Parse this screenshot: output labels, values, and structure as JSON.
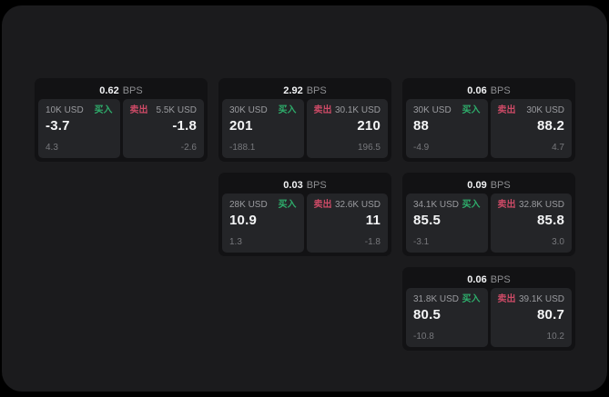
{
  "colors": {
    "page_background": "#1b1b1d",
    "card_background": "#121214",
    "pane_background": "#242528",
    "buy_green": "#2ead6b",
    "sell_red": "#cc4a66",
    "value_white": "#f4f5f6",
    "label_gray": "#9a9b9f"
  },
  "cards": [
    {
      "bps": "0.62",
      "unit": "BPS",
      "buy": {
        "amount": "10K USD",
        "side": "买入",
        "value": "-3.7",
        "sub": "4.3"
      },
      "sell": {
        "side": "卖出",
        "amount": "5.5K USD",
        "value": "-1.8",
        "sub": "-2.6"
      }
    },
    {
      "bps": "2.92",
      "unit": "BPS",
      "buy": {
        "amount": "30K USD",
        "side": "买入",
        "value": "201",
        "sub": "-188.1"
      },
      "sell": {
        "side": "卖出",
        "amount": "30.1K USD",
        "value": "210",
        "sub": "196.5"
      }
    },
    {
      "bps": "0.06",
      "unit": "BPS",
      "buy": {
        "amount": "30K USD",
        "side": "买入",
        "value": "88",
        "sub": "-4.9"
      },
      "sell": {
        "side": "卖出",
        "amount": "30K USD",
        "value": "88.2",
        "sub": "4.7"
      }
    },
    {
      "bps": "0.03",
      "unit": "BPS",
      "buy": {
        "amount": "28K USD",
        "side": "买入",
        "value": "10.9",
        "sub": "1.3"
      },
      "sell": {
        "side": "卖出",
        "amount": "32.6K USD",
        "value": "11",
        "sub": "-1.8"
      }
    },
    {
      "bps": "0.09",
      "unit": "BPS",
      "buy": {
        "amount": "34.1K USD",
        "side": "买入",
        "value": "85.5",
        "sub": "-3.1"
      },
      "sell": {
        "side": "卖出",
        "amount": "32.8K USD",
        "value": "85.8",
        "sub": "3.0"
      }
    },
    {
      "bps": "0.06",
      "unit": "BPS",
      "buy": {
        "amount": "31.8K USD",
        "side": "买入",
        "value": "80.5",
        "sub": "-10.8"
      },
      "sell": {
        "side": "卖出",
        "amount": "39.1K USD",
        "value": "80.7",
        "sub": "10.2"
      }
    }
  ]
}
